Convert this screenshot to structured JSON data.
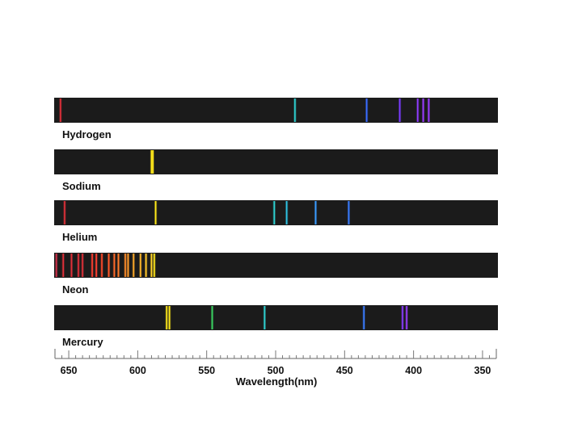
{
  "axis": {
    "title": "Wavelength(nm)",
    "min_nm": 340,
    "max_nm": 660,
    "ticks": [
      650,
      600,
      550,
      500,
      450,
      400,
      350
    ],
    "tick_labels": [
      "650",
      "600",
      "550",
      "500",
      "450",
      "400",
      "350"
    ]
  },
  "background_color": "#1b1b1b",
  "spectra": [
    {
      "name": "Hydrogen",
      "lines": [
        {
          "nm": 656,
          "color": "#e0303a"
        },
        {
          "nm": 486,
          "color": "#2fd0d0"
        },
        {
          "nm": 434,
          "color": "#3a6cff"
        },
        {
          "nm": 410,
          "color": "#7a3cff"
        },
        {
          "nm": 397,
          "color": "#8f3cff"
        },
        {
          "nm": 393,
          "color": "#9a3cff"
        },
        {
          "nm": 389,
          "color": "#9a3cff"
        }
      ]
    },
    {
      "name": "Sodium",
      "lines": [
        {
          "nm": 590,
          "color": "#ffe81a"
        },
        {
          "nm": 589,
          "color": "#ffe81a"
        }
      ]
    },
    {
      "name": "Helium",
      "lines": [
        {
          "nm": 653,
          "color": "#e0303a"
        },
        {
          "nm": 587,
          "color": "#ffe81a"
        },
        {
          "nm": 501,
          "color": "#2fd0d0"
        },
        {
          "nm": 492,
          "color": "#2fc0e0"
        },
        {
          "nm": 471,
          "color": "#3a9cff"
        },
        {
          "nm": 447,
          "color": "#3a7cff"
        }
      ]
    },
    {
      "name": "Neon",
      "lines": [
        {
          "nm": 659,
          "color": "#d0304a"
        },
        {
          "nm": 654,
          "color": "#e0303a"
        },
        {
          "nm": 648,
          "color": "#e0303a"
        },
        {
          "nm": 643,
          "color": "#e0303a"
        },
        {
          "nm": 640,
          "color": "#e0303a"
        },
        {
          "nm": 633,
          "color": "#ff3f30"
        },
        {
          "nm": 630,
          "color": "#ff4030"
        },
        {
          "nm": 626,
          "color": "#ff4a2a"
        },
        {
          "nm": 621,
          "color": "#ff5a2a"
        },
        {
          "nm": 617,
          "color": "#ff6a2a"
        },
        {
          "nm": 614,
          "color": "#ff7a2a"
        },
        {
          "nm": 609,
          "color": "#ff8c2a"
        },
        {
          "nm": 607,
          "color": "#ff9a2a"
        },
        {
          "nm": 603,
          "color": "#ffaa2a"
        },
        {
          "nm": 598,
          "color": "#ffb82a"
        },
        {
          "nm": 594,
          "color": "#ffc72a"
        },
        {
          "nm": 590,
          "color": "#ffd42a"
        },
        {
          "nm": 588,
          "color": "#ffe81a"
        }
      ]
    },
    {
      "name": "Mercury",
      "lines": [
        {
          "nm": 579,
          "color": "#ffe81a"
        },
        {
          "nm": 577,
          "color": "#ffe81a"
        },
        {
          "nm": 546,
          "color": "#3ad060"
        },
        {
          "nm": 508,
          "color": "#2fd0d0"
        },
        {
          "nm": 436,
          "color": "#3a7cff"
        },
        {
          "nm": 408,
          "color": "#8a3cff"
        },
        {
          "nm": 405,
          "color": "#9a3cff"
        }
      ]
    }
  ]
}
